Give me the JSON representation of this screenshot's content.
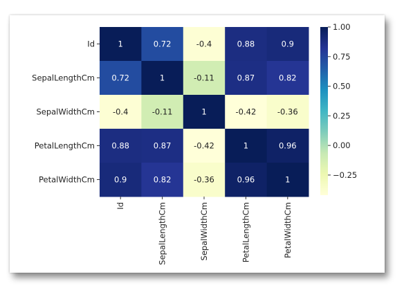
{
  "chart_data": {
    "type": "heatmap",
    "title": "",
    "xlabel": "",
    "ylabel": "",
    "rows": [
      "Id",
      "SepalLengthCm",
      "SepalWidthCm",
      "PetalLengthCm",
      "PetalWidthCm"
    ],
    "columns": [
      "Id",
      "SepalLengthCm",
      "SepalWidthCm",
      "PetalLengthCm",
      "PetalWidthCm"
    ],
    "values": [
      [
        1,
        0.72,
        -0.4,
        0.88,
        0.9
      ],
      [
        0.72,
        1,
        -0.11,
        0.87,
        0.82
      ],
      [
        -0.4,
        -0.11,
        1,
        -0.42,
        -0.36
      ],
      [
        0.88,
        0.87,
        -0.42,
        1,
        0.96
      ],
      [
        0.9,
        0.82,
        -0.36,
        0.96,
        1
      ]
    ],
    "value_labels": [
      [
        "1",
        "0.72",
        "-0.4",
        "0.88",
        "0.9"
      ],
      [
        "0.72",
        "1",
        "-0.11",
        "0.87",
        "0.82"
      ],
      [
        "-0.4",
        "-0.11",
        "1",
        "-0.42",
        "-0.36"
      ],
      [
        "0.88",
        "0.87",
        "-0.42",
        "1",
        "0.96"
      ],
      [
        "0.9",
        "0.82",
        "-0.36",
        "0.96",
        "1"
      ]
    ],
    "colorbar": {
      "colormap": "YlGnBu",
      "vmin": -0.42,
      "vmax": 1.0,
      "ticks": [
        1.0,
        0.75,
        0.5,
        0.25,
        0.0,
        -0.25
      ],
      "tick_labels": [
        "1.00",
        "0.75",
        "0.50",
        "0.25",
        "0.00",
        "−0.25"
      ]
    }
  }
}
